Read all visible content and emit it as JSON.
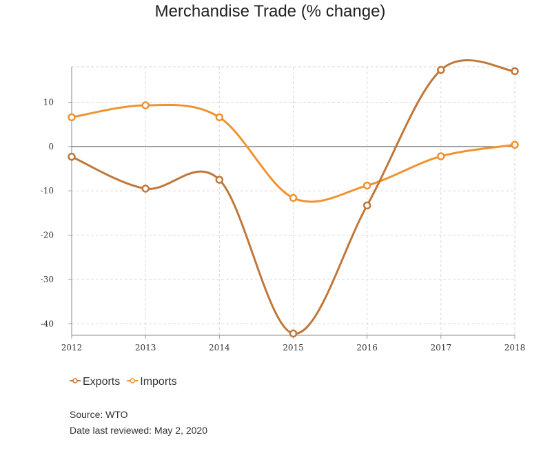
{
  "chart_data": {
    "type": "line",
    "title": "Merchandise Trade (% change)",
    "xlabel": "",
    "ylabel": "",
    "categories": [
      "2012",
      "2013",
      "2014",
      "2015",
      "2016",
      "2017",
      "2018"
    ],
    "ylim": [
      -42.6,
      18
    ],
    "yticks": [
      10,
      0,
      -10,
      -20,
      -30,
      -40
    ],
    "grid": true,
    "legend_position": "bottom-left",
    "series": [
      {
        "name": "Exports",
        "color": "#c0773a",
        "values": [
          -2.3,
          -9.5,
          -7.5,
          -42.2,
          -13.3,
          17.3,
          17.0
        ]
      },
      {
        "name": "Imports",
        "color": "#f0922f",
        "values": [
          6.6,
          9.3,
          6.6,
          -11.6,
          -8.8,
          -2.2,
          0.4
        ]
      }
    ]
  },
  "footer": {
    "source": "Source: WTO",
    "reviewed": "Date last reviewed: May 2, 2020"
  }
}
